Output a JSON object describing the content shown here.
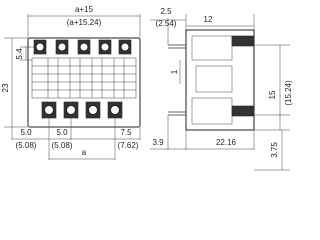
{
  "dimensions": {
    "top_width": "a+15",
    "top_width_inch": "(a+15.24)",
    "pin_offset": "2.5",
    "pin_offset_inch": "(2.54)",
    "depth": "12",
    "height": "23",
    "pitch_row": "5.4",
    "pin_step": "1",
    "side_height": "15",
    "side_height_inch": "(15.24)",
    "left_margin": "5.0",
    "left_margin_inch": "(5.08)",
    "pitch": "5.0",
    "pitch_inch": "(5.08)",
    "right_margin": "7.5",
    "right_margin_inch": "(7.62)",
    "pitch_var": "a",
    "pin_length": "3.9",
    "body_length": "22.16",
    "bottom_offset": "3.75"
  }
}
